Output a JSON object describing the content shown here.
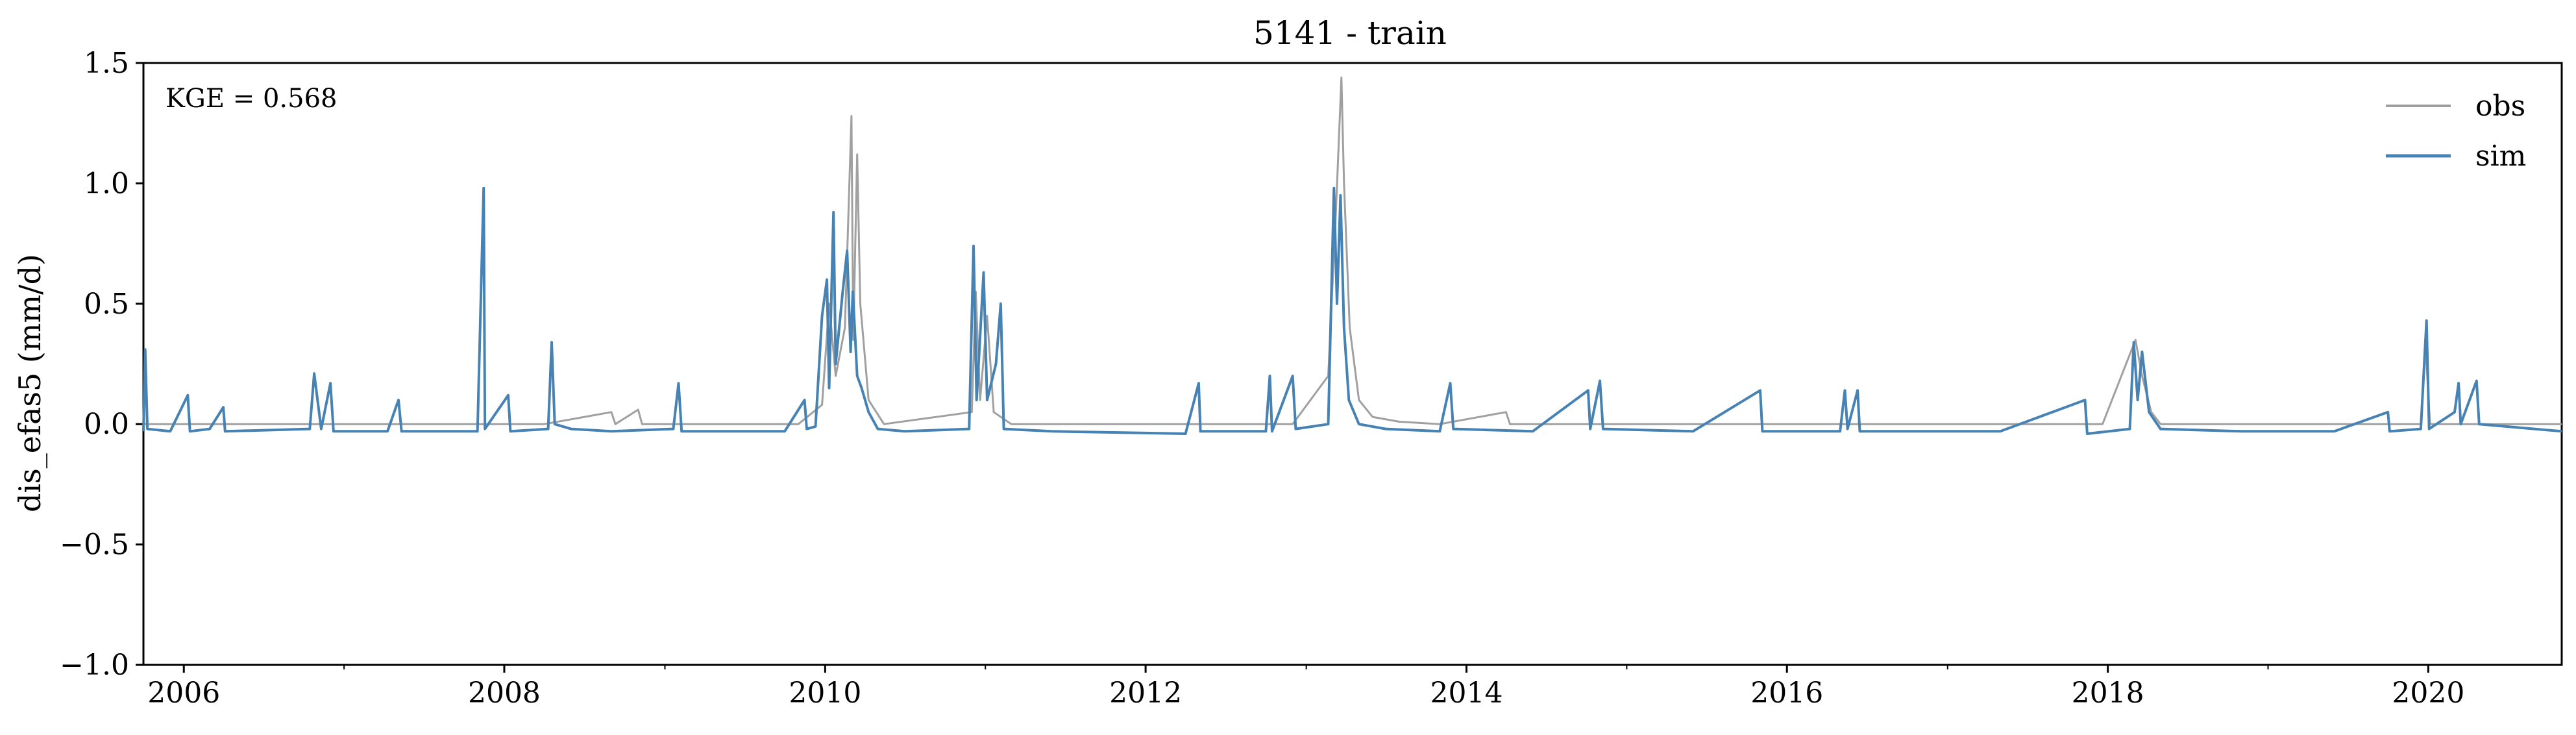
{
  "chart_data": {
    "type": "line",
    "title": "5141 - train",
    "xlabel": "",
    "ylabel": "dis_efas5 (mm/d)",
    "annotation": "KGE = 0.568",
    "xlim": [
      "2005-10-01",
      "2020-10-31"
    ],
    "ylim": [
      -1.0,
      1.5
    ],
    "xticks": [
      "2006",
      "2008",
      "2010",
      "2012",
      "2014",
      "2016",
      "2018",
      "2020"
    ],
    "yticks": [
      "1.5",
      "1.0",
      "0.5",
      "0.0",
      "−0.5",
      "−1.0"
    ],
    "grid": false,
    "legend_position": "top-right",
    "colors": {
      "obs": "#a0a0a0",
      "sim": "#4682b4"
    },
    "series": [
      {
        "name": "obs",
        "points": [
          [
            "2005-10-01",
            0.0
          ],
          [
            "2005-10-05",
            0.0
          ],
          [
            "2006-01-01",
            0.0
          ],
          [
            "2006-10-10",
            0.0
          ],
          [
            "2007-11-01",
            0.0
          ],
          [
            "2008-04-01",
            0.0
          ],
          [
            "2008-09-01",
            0.05
          ],
          [
            "2008-09-10",
            0.0
          ],
          [
            "2008-11-01",
            0.06
          ],
          [
            "2008-11-10",
            0.0
          ],
          [
            "2009-11-01",
            0.0
          ],
          [
            "2009-12-25",
            0.08
          ],
          [
            "2010-01-10",
            0.5
          ],
          [
            "2010-01-25",
            0.2
          ],
          [
            "2010-02-15",
            0.4
          ],
          [
            "2010-03-02",
            1.28
          ],
          [
            "2010-03-06",
            0.35
          ],
          [
            "2010-03-15",
            1.12
          ],
          [
            "2010-03-22",
            0.5
          ],
          [
            "2010-04-10",
            0.1
          ],
          [
            "2010-05-15",
            0.0
          ],
          [
            "2010-12-01",
            0.05
          ],
          [
            "2010-12-10",
            0.55
          ],
          [
            "2010-12-20",
            0.1
          ],
          [
            "2011-01-05",
            0.45
          ],
          [
            "2011-01-20",
            0.05
          ],
          [
            "2011-03-01",
            0.0
          ],
          [
            "2012-12-01",
            0.0
          ],
          [
            "2013-02-20",
            0.2
          ],
          [
            "2013-03-10",
            0.9
          ],
          [
            "2013-03-22",
            1.44
          ],
          [
            "2013-03-28",
            1.0
          ],
          [
            "2013-04-10",
            0.4
          ],
          [
            "2013-05-01",
            0.1
          ],
          [
            "2013-06-01",
            0.03
          ],
          [
            "2013-08-01",
            0.01
          ],
          [
            "2013-11-01",
            0.0
          ],
          [
            "2014-04-01",
            0.05
          ],
          [
            "2014-04-10",
            0.0
          ],
          [
            "2017-12-20",
            0.0
          ],
          [
            "2018-03-05",
            0.35
          ],
          [
            "2018-03-20",
            0.2
          ],
          [
            "2018-04-10",
            0.05
          ],
          [
            "2018-05-01",
            0.0
          ],
          [
            "2019-12-15",
            0.0
          ],
          [
            "2019-12-25",
            0.35
          ],
          [
            "2020-01-05",
            0.0
          ],
          [
            "2020-10-31",
            0.0
          ]
        ]
      },
      {
        "name": "sim",
        "points": [
          [
            "2005-10-01",
            -0.03
          ],
          [
            "2005-10-05",
            0.31
          ],
          [
            "2005-10-10",
            -0.02
          ],
          [
            "2005-12-01",
            -0.03
          ],
          [
            "2006-01-10",
            0.12
          ],
          [
            "2006-01-15",
            -0.03
          ],
          [
            "2006-03-01",
            -0.02
          ],
          [
            "2006-04-01",
            0.07
          ],
          [
            "2006-04-05",
            -0.03
          ],
          [
            "2006-10-15",
            -0.02
          ],
          [
            "2006-10-25",
            0.21
          ],
          [
            "2006-11-10",
            -0.02
          ],
          [
            "2006-12-01",
            0.17
          ],
          [
            "2006-12-08",
            -0.03
          ],
          [
            "2007-04-10",
            -0.03
          ],
          [
            "2007-05-05",
            0.1
          ],
          [
            "2007-05-12",
            -0.03
          ],
          [
            "2007-11-01",
            -0.03
          ],
          [
            "2007-11-15",
            0.98
          ],
          [
            "2007-11-18",
            -0.02
          ],
          [
            "2008-01-10",
            0.12
          ],
          [
            "2008-01-15",
            -0.03
          ],
          [
            "2008-04-10",
            -0.02
          ],
          [
            "2008-04-18",
            0.34
          ],
          [
            "2008-04-25",
            0.0
          ],
          [
            "2008-06-01",
            -0.02
          ],
          [
            "2008-09-01",
            -0.03
          ],
          [
            "2009-01-20",
            -0.02
          ],
          [
            "2009-02-01",
            0.17
          ],
          [
            "2009-02-08",
            -0.03
          ],
          [
            "2009-06-01",
            -0.03
          ],
          [
            "2009-10-01",
            -0.03
          ],
          [
            "2009-11-15",
            0.1
          ],
          [
            "2009-11-20",
            -0.02
          ],
          [
            "2009-12-10",
            -0.01
          ],
          [
            "2009-12-25",
            0.45
          ],
          [
            "2010-01-05",
            0.6
          ],
          [
            "2010-01-10",
            0.15
          ],
          [
            "2010-01-20",
            0.88
          ],
          [
            "2010-01-25",
            0.25
          ],
          [
            "2010-02-10",
            0.55
          ],
          [
            "2010-02-20",
            0.72
          ],
          [
            "2010-02-28",
            0.3
          ],
          [
            "2010-03-05",
            0.55
          ],
          [
            "2010-03-15",
            0.2
          ],
          [
            "2010-03-25",
            0.15
          ],
          [
            "2010-04-10",
            0.05
          ],
          [
            "2010-05-01",
            -0.02
          ],
          [
            "2010-07-01",
            -0.03
          ],
          [
            "2010-11-25",
            -0.02
          ],
          [
            "2010-12-05",
            0.74
          ],
          [
            "2010-12-12",
            0.1
          ],
          [
            "2010-12-28",
            0.63
          ],
          [
            "2011-01-05",
            0.1
          ],
          [
            "2011-01-25",
            0.25
          ],
          [
            "2011-02-05",
            0.5
          ],
          [
            "2011-02-12",
            -0.02
          ],
          [
            "2011-06-01",
            -0.03
          ],
          [
            "2012-04-01",
            -0.04
          ],
          [
            "2012-05-01",
            0.17
          ],
          [
            "2012-05-05",
            -0.03
          ],
          [
            "2012-10-01",
            -0.03
          ],
          [
            "2012-10-10",
            0.2
          ],
          [
            "2012-10-15",
            -0.03
          ],
          [
            "2012-12-01",
            0.2
          ],
          [
            "2012-12-08",
            -0.02
          ],
          [
            "2013-02-20",
            0.0
          ],
          [
            "2013-03-05",
            0.98
          ],
          [
            "2013-03-12",
            0.5
          ],
          [
            "2013-03-20",
            0.95
          ],
          [
            "2013-03-28",
            0.4
          ],
          [
            "2013-04-08",
            0.1
          ],
          [
            "2013-05-01",
            0.0
          ],
          [
            "2013-07-01",
            -0.02
          ],
          [
            "2013-11-01",
            -0.03
          ],
          [
            "2013-11-25",
            0.17
          ],
          [
            "2013-12-02",
            -0.02
          ],
          [
            "2014-06-01",
            -0.03
          ],
          [
            "2014-10-05",
            0.14
          ],
          [
            "2014-10-10",
            -0.02
          ],
          [
            "2014-11-01",
            0.18
          ],
          [
            "2014-11-08",
            -0.02
          ],
          [
            "2015-06-01",
            -0.03
          ],
          [
            "2015-11-01",
            0.14
          ],
          [
            "2015-11-06",
            -0.03
          ],
          [
            "2016-05-01",
            -0.03
          ],
          [
            "2016-05-12",
            0.14
          ],
          [
            "2016-05-18",
            -0.02
          ],
          [
            "2016-06-10",
            0.14
          ],
          [
            "2016-06-15",
            -0.03
          ],
          [
            "2017-05-01",
            -0.03
          ],
          [
            "2017-11-10",
            0.1
          ],
          [
            "2017-11-15",
            -0.04
          ],
          [
            "2018-02-20",
            -0.02
          ],
          [
            "2018-03-01",
            0.34
          ],
          [
            "2018-03-10",
            0.1
          ],
          [
            "2018-03-20",
            0.3
          ],
          [
            "2018-04-05",
            0.05
          ],
          [
            "2018-05-01",
            -0.02
          ],
          [
            "2018-11-01",
            -0.03
          ],
          [
            "2019-06-01",
            -0.03
          ],
          [
            "2019-10-01",
            0.05
          ],
          [
            "2019-10-05",
            -0.03
          ],
          [
            "2019-12-15",
            -0.02
          ],
          [
            "2019-12-28",
            0.43
          ],
          [
            "2020-01-03",
            -0.02
          ],
          [
            "2020-03-01",
            0.05
          ],
          [
            "2020-03-10",
            0.17
          ],
          [
            "2020-03-15",
            0.0
          ],
          [
            "2020-04-20",
            0.18
          ],
          [
            "2020-04-26",
            0.0
          ],
          [
            "2020-10-31",
            -0.03
          ]
        ]
      }
    ]
  }
}
